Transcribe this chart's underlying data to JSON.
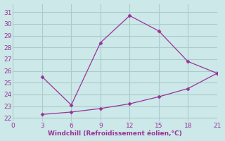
{
  "line1_x": [
    3,
    6,
    9,
    12,
    15,
    18,
    21
  ],
  "line1_y": [
    25.5,
    23.1,
    28.4,
    30.7,
    29.4,
    26.8,
    25.8
  ],
  "line2_x": [
    3,
    21
  ],
  "line2_y": [
    22.3,
    25.8
  ],
  "dot_x": [
    3,
    6,
    9,
    12,
    15,
    18,
    21
  ],
  "dot_y": [
    22.3,
    22.5,
    22.8,
    23.2,
    23.8,
    24.5,
    25.8
  ],
  "line_color": "#993399",
  "bg_color": "#cce8e8",
  "grid_color": "#aacccc",
  "xlabel": "Windchill (Refroidissement éolien,°C)",
  "xlabel_color": "#993399",
  "ylabel_ticks": [
    22,
    23,
    24,
    25,
    26,
    27,
    28,
    29,
    30,
    31
  ],
  "xticks": [
    0,
    3,
    6,
    9,
    12,
    15,
    18,
    21
  ],
  "xlim": [
    0,
    21
  ],
  "ylim": [
    21.7,
    31.7
  ],
  "tick_color": "#993399"
}
